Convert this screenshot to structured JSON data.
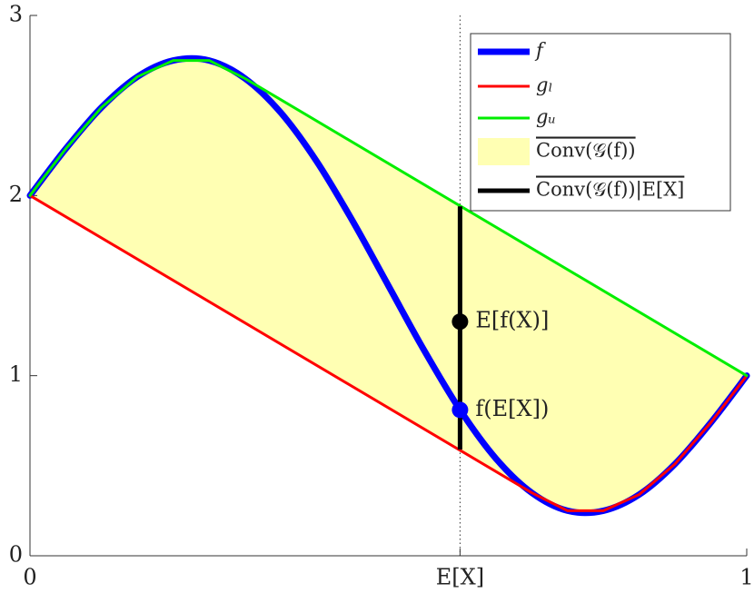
{
  "chart_data": {
    "type": "line",
    "xlim": [
      0,
      1
    ],
    "ylim": [
      0,
      3
    ],
    "xticks": [
      0,
      {
        "value": 0.6,
        "label": "E[X]"
      },
      1
    ],
    "yticks": [
      0,
      1,
      2,
      3
    ],
    "grid": false,
    "legend": "upper right",
    "series": [
      {
        "name": "f",
        "color": "#0000ff",
        "x": [
          0,
          0.05,
          0.1,
          0.15,
          0.2,
          0.25,
          0.3,
          0.35,
          0.4,
          0.45,
          0.5,
          0.55,
          0.6,
          0.65,
          0.7,
          0.75,
          0.8,
          0.85,
          0.9,
          0.95,
          1
        ],
        "values": [
          2,
          2.26,
          2.49,
          2.66,
          2.75,
          2.75,
          2.65,
          2.46,
          2.19,
          1.86,
          1.5,
          1.14,
          0.81,
          0.54,
          0.35,
          0.25,
          0.25,
          0.34,
          0.51,
          0.74,
          1
        ]
      },
      {
        "name": "gₗ",
        "color": "#ff0000",
        "x": [
          0,
          0.7,
          0.75,
          0.8,
          0.85,
          0.9,
          0.95,
          1
        ],
        "values": [
          2,
          0.35,
          0.25,
          0.25,
          0.34,
          0.51,
          0.74,
          1
        ]
      },
      {
        "name": "gᵤ",
        "color": "#00ee00",
        "x": [
          0,
          0.05,
          0.1,
          0.15,
          0.2,
          0.25,
          0.3,
          1
        ],
        "values": [
          2,
          2.26,
          2.49,
          2.66,
          2.75,
          2.75,
          2.65,
          1
        ]
      }
    ],
    "region": {
      "name": "Conv(𝒢(f))",
      "color": "#ffffb3"
    },
    "segment": {
      "name": "Conv(𝒢(f))|E[X]",
      "color": "#000000",
      "x": 0.6,
      "values": [
        0.59,
        1.94
      ]
    },
    "points": [
      {
        "label": "E[f(X)]",
        "x": 0.6,
        "value": 1.3,
        "color": "#000000"
      },
      {
        "label": "f(E[X])",
        "x": 0.6,
        "value": 0.81,
        "color": "#0000ff"
      }
    ]
  }
}
